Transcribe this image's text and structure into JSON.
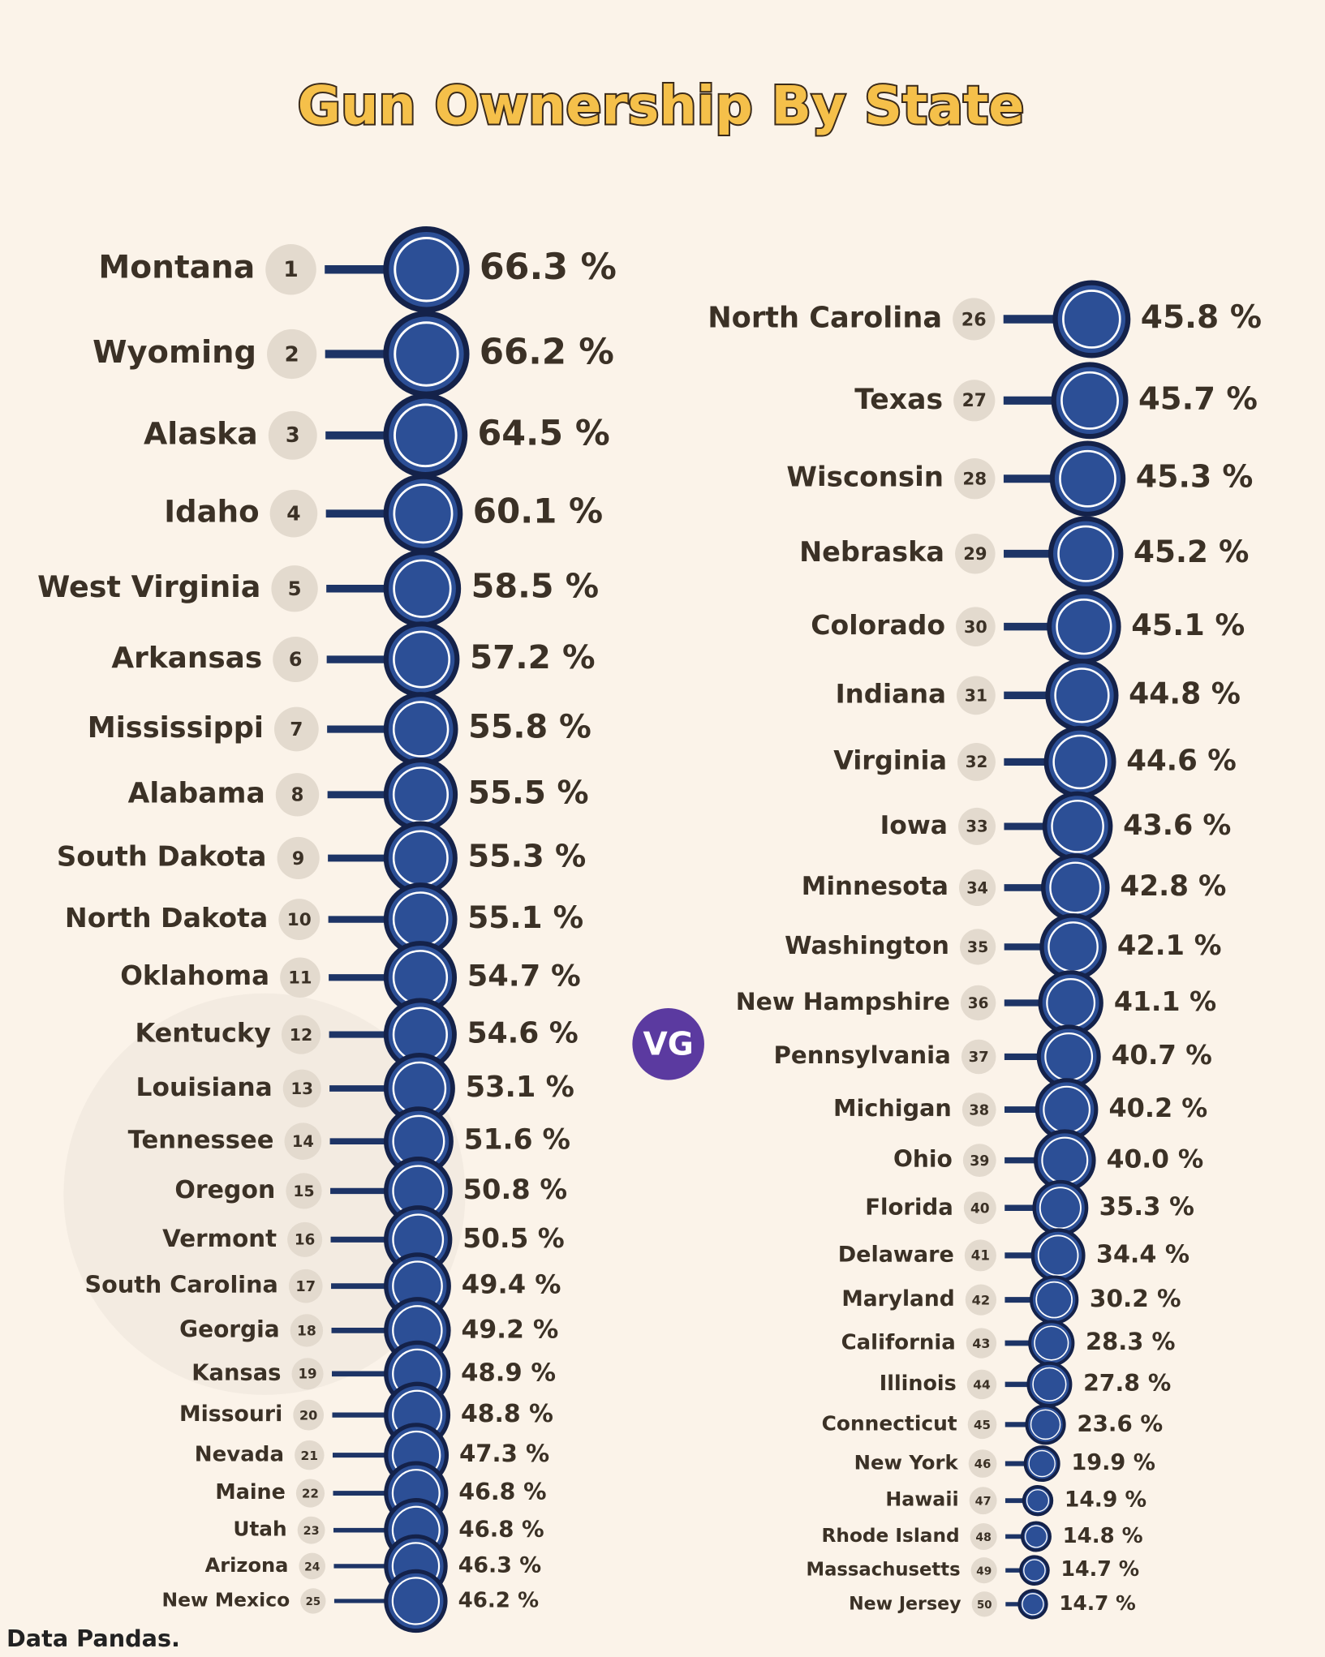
{
  "chart_data": {
    "type": "ranking",
    "title": "Gun Ownership By State",
    "source": "Data Pandas.",
    "logo": "VG",
    "categories": [
      "Montana",
      "Wyoming",
      "Alaska",
      "Idaho",
      "West Virginia",
      "Arkansas",
      "Mississippi",
      "Alabama",
      "South Dakota",
      "North Dakota",
      "Oklahoma",
      "Kentucky",
      "Louisiana",
      "Tennessee",
      "Oregon",
      "Vermont",
      "South Carolina",
      "Georgia",
      "Kansas",
      "Missouri",
      "Nevada",
      "Maine",
      "Utah",
      "Arizona",
      "New Mexico",
      "North Carolina",
      "Texas",
      "Wisconsin",
      "Nebraska",
      "Colorado",
      "Indiana",
      "Virginia",
      "Iowa",
      "Minnesota",
      "Washington",
      "New Hampshire",
      "Pennsylvania",
      "Michigan",
      "Ohio",
      "Florida",
      "Delaware",
      "Maryland",
      "California",
      "Illinois",
      "Connecticut",
      "New York",
      "Hawaii",
      "Rhode Island",
      "Massachusetts",
      "New Jersey"
    ],
    "ranks": [
      1,
      2,
      3,
      4,
      5,
      6,
      7,
      8,
      9,
      10,
      11,
      12,
      13,
      14,
      15,
      16,
      17,
      18,
      19,
      20,
      21,
      22,
      23,
      24,
      25,
      26,
      27,
      28,
      29,
      30,
      31,
      32,
      33,
      34,
      35,
      36,
      37,
      38,
      39,
      40,
      41,
      42,
      43,
      44,
      45,
      46,
      47,
      48,
      49,
      50
    ],
    "values": [
      66.3,
      66.2,
      64.5,
      60.1,
      58.5,
      57.2,
      55.8,
      55.5,
      55.3,
      55.1,
      54.7,
      54.6,
      53.1,
      51.6,
      50.8,
      50.5,
      49.4,
      49.2,
      48.9,
      48.8,
      47.3,
      46.8,
      46.8,
      46.3,
      46.2,
      45.8,
      45.7,
      45.3,
      45.2,
      45.1,
      44.8,
      44.6,
      43.6,
      42.8,
      42.1,
      41.1,
      40.7,
      40.2,
      40.0,
      35.3,
      34.4,
      30.2,
      28.3,
      27.8,
      23.6,
      19.9,
      14.9,
      14.8,
      14.7,
      14.7
    ],
    "value_labels": [
      "66.3 %",
      "66.2 %",
      "64.5 %",
      "60.1 %",
      "58.5 %",
      "57.2 %",
      "55.8 %",
      "55.5 %",
      "55.3 %",
      "55.1 %",
      "54.7 %",
      "54.6 %",
      "53.1 %",
      "51.6 %",
      "50.8 %",
      "50.5 %",
      "49.4 %",
      "49.2 %",
      "48.9 %",
      "48.8 %",
      "47.3 %",
      "46.8 %",
      "46.8 %",
      "46.3 %",
      "46.2 %",
      "45.8 %",
      "45.7 %",
      "45.3 %",
      "45.2 %",
      "45.1 %",
      "44.8 %",
      "44.6 %",
      "43.6 %",
      "42.8 %",
      "42.1 %",
      "41.1 %",
      "40.7 %",
      "40.2 %",
      "40.0 %",
      "35.3 %",
      "34.4 %",
      "30.2 %",
      "28.3 %",
      "27.8 %",
      "23.6 %",
      "19.9 %",
      "14.9 %",
      "14.8 %",
      "14.7 %",
      "14.7 %"
    ]
  }
}
